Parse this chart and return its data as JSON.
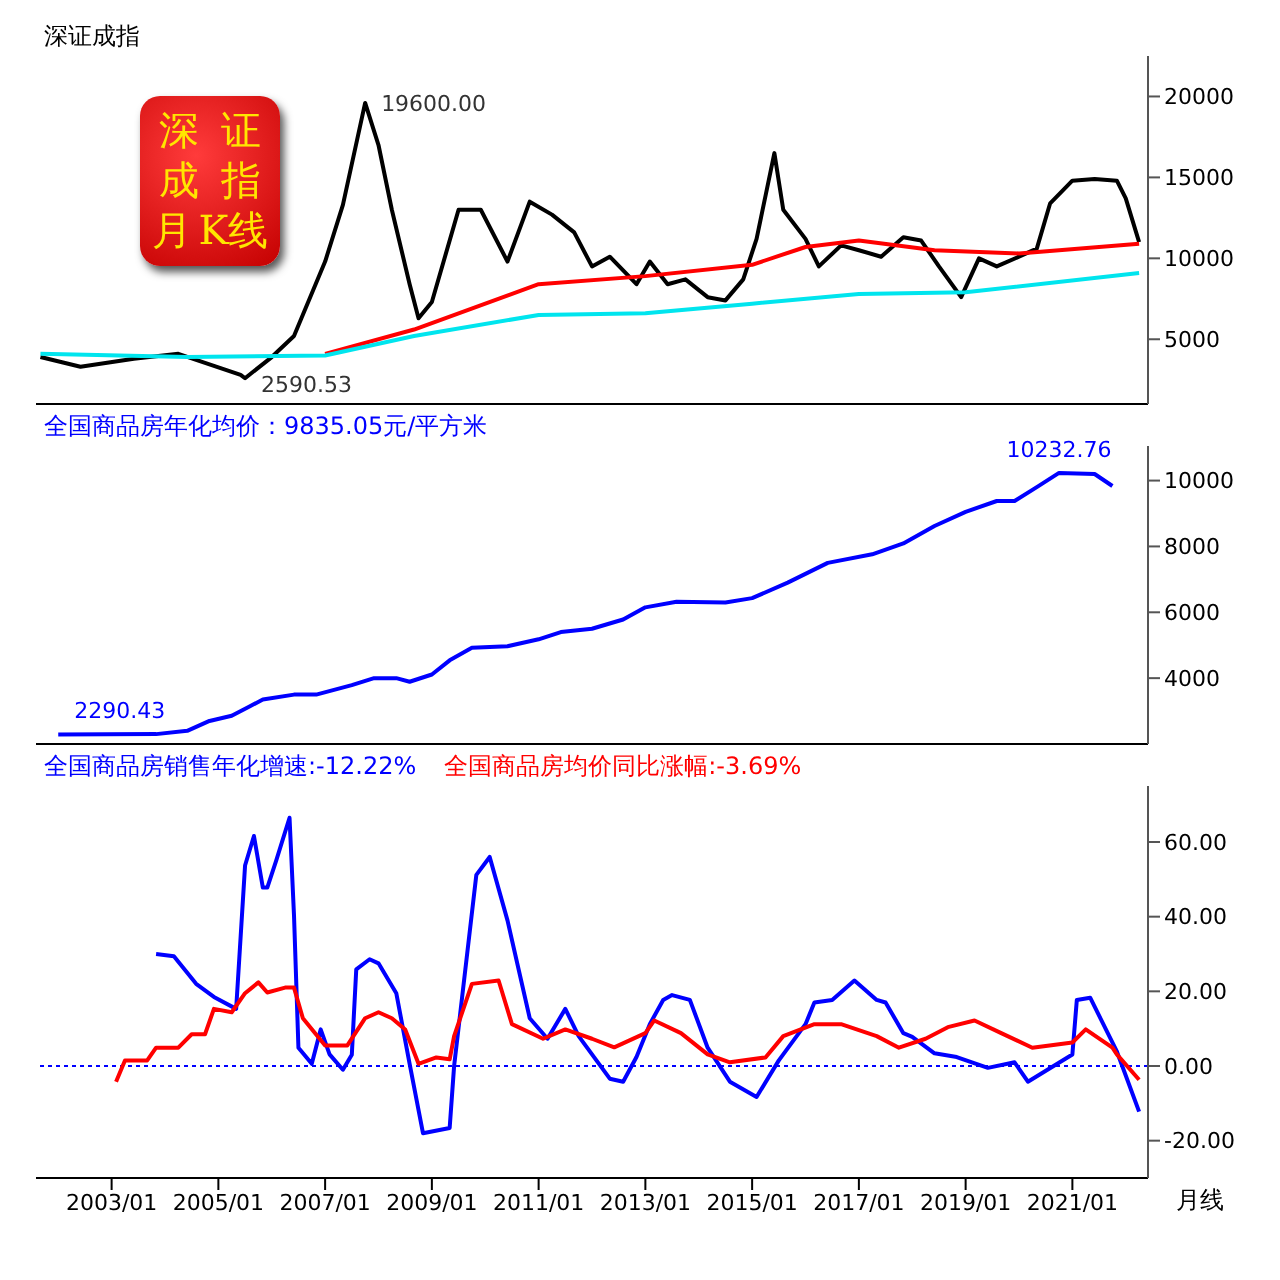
{
  "chart_data": [
    {
      "type": "line",
      "title": "深证成指",
      "xlim": [
        "2001-08",
        "2022-06"
      ],
      "ylim": [
        1000,
        22500
      ],
      "yticks": [
        5000,
        10000,
        15000,
        20000
      ],
      "tick_labels": "y",
      "annotations": [
        "深证成指月K线",
        {
          "text": "19600.00",
          "x": "2007-10",
          "y": 19600
        },
        {
          "text": "2590.53",
          "x": "2005-07",
          "y": 2590.53
        }
      ],
      "series": [
        {
          "color": "#000000",
          "x": [
            "2001-09",
            "2002-06",
            "2003-06",
            "2004-04",
            "2005-06",
            "2005-07",
            "2006-01",
            "2006-06",
            "2007-01",
            "2007-05",
            "2007-10",
            "2008-01",
            "2008-04",
            "2008-08",
            "2008-10",
            "2009-01",
            "2009-07",
            "2009-12",
            "2010-06",
            "2010-11",
            "2011-04",
            "2011-09",
            "2012-01",
            "2012-05",
            "2012-11",
            "2013-02",
            "2013-06",
            "2013-10",
            "2014-03",
            "2014-07",
            "2014-11",
            "2015-02",
            "2015-06",
            "2015-08",
            "2016-01",
            "2016-04",
            "2016-09",
            "2017-01",
            "2017-06",
            "2017-11",
            "2018-03",
            "2018-07",
            "2018-12",
            "2019-04",
            "2019-08",
            "2020-01",
            "2020-05",
            "2020-08",
            "2021-01",
            "2021-06",
            "2021-11",
            "2022-01",
            "2022-04"
          ],
          "values": [
            3900,
            3300,
            3800,
            4100,
            2800,
            2590.53,
            3900,
            5200,
            9800,
            13300,
            19600,
            17000,
            13000,
            8400,
            6300,
            7300,
            13000,
            13000,
            9800,
            13500,
            12700,
            11600,
            9500,
            10100,
            8400,
            9800,
            8400,
            8700,
            7600,
            7400,
            8700,
            11200,
            16500,
            13000,
            11200,
            9500,
            10800,
            10500,
            10100,
            11300,
            11100,
            9500,
            7600,
            10000,
            9500,
            10100,
            10600,
            13400,
            14800,
            14900,
            14800,
            13700,
            11000
          ]
        },
        {
          "color": "#ff0000",
          "x": [
            "2007-01",
            "2008-09",
            "2011-01",
            "2013-01",
            "2015-01",
            "2016-01",
            "2017-01",
            "2018-06",
            "2020-01",
            "2022-04"
          ],
          "values": [
            4100,
            5600,
            8400,
            8900,
            9600,
            10700,
            11100,
            10500,
            10300,
            10900
          ]
        },
        {
          "color": "#00e5ee",
          "x": [
            "2001-09",
            "2004-06",
            "2007-01",
            "2008-09",
            "2011-01",
            "2013-01",
            "2015-01",
            "2017-01",
            "2019-01",
            "2022-04"
          ],
          "values": [
            4100,
            3900,
            4000,
            5200,
            6500,
            6600,
            7200,
            7800,
            7900,
            9100
          ]
        }
      ]
    },
    {
      "type": "line",
      "xlim": [
        "2001-08",
        "2022-06"
      ],
      "ylim": [
        2000,
        11050
      ],
      "yticks": [
        4000,
        6000,
        8000,
        10000
      ],
      "tick_labels": "y",
      "annotations": [
        {
          "text": "2290.43",
          "x": "2002-01",
          "y": 2290.43
        },
        {
          "text": "10232.76",
          "x": "2020-10",
          "y": 10232.76
        }
      ],
      "series": [
        {
          "name": "全国商品房年化均价：9835.05元/平方米",
          "color": "#0000ff",
          "x": [
            "2002-01",
            "2003-11",
            "2004-06",
            "2004-11",
            "2005-04",
            "2005-08",
            "2005-11",
            "2006-06",
            "2006-11",
            "2007-07",
            "2007-12",
            "2008-05",
            "2008-08",
            "2009-01",
            "2009-05",
            "2009-10",
            "2010-06",
            "2011-01",
            "2011-06",
            "2012-01",
            "2012-08",
            "2013-01",
            "2013-08",
            "2014-07",
            "2015-01",
            "2015-09",
            "2016-06",
            "2017-04",
            "2017-11",
            "2018-06",
            "2019-01",
            "2019-08",
            "2019-12",
            "2020-05",
            "2020-10",
            "2021-06",
            "2021-10"
          ],
          "values": [
            2290.43,
            2300,
            2400,
            2700,
            2860,
            3140,
            3350,
            3500,
            3500,
            3790,
            4000,
            4000,
            3890,
            4110,
            4540,
            4920,
            4970,
            5180,
            5400,
            5500,
            5780,
            6150,
            6320,
            6300,
            6430,
            6900,
            7500,
            7760,
            8090,
            8620,
            9050,
            9380,
            9380,
            9800,
            10232.76,
            10200,
            9835.05
          ]
        }
      ]
    },
    {
      "type": "line",
      "xlabel": "月线",
      "xlim": [
        "2001-08",
        "2022-06"
      ],
      "ylim": [
        -30,
        75
      ],
      "yticks": [
        {
          "value": -20,
          "label": "-20.00"
        },
        {
          "value": 0,
          "label": "0.00"
        },
        {
          "value": 20,
          "label": "20.00"
        },
        {
          "value": 40,
          "label": "40.00"
        },
        {
          "value": 60,
          "label": "60.00"
        }
      ],
      "xticks": [
        {
          "value": "2003-01",
          "label": "2003/01"
        },
        {
          "value": "2005-01",
          "label": "2005/01"
        },
        {
          "value": "2007-01",
          "label": "2007/01"
        },
        {
          "value": "2009-01",
          "label": "2009/01"
        },
        {
          "value": "2011-01",
          "label": "2011/01"
        },
        {
          "value": "2013-01",
          "label": "2013/01"
        },
        {
          "value": "2015-01",
          "label": "2015/01"
        },
        {
          "value": "2017-01",
          "label": "2017/01"
        },
        {
          "value": "2019-01",
          "label": "2019/01"
        },
        {
          "value": "2021-01",
          "label": "2021/01"
        }
      ],
      "ref_lines": [
        {
          "axis": "y",
          "value": 0,
          "color": "#0000ff",
          "line_style": "dotted"
        }
      ],
      "series": [
        {
          "name": "全国商品房销售年化增速:-12.22%",
          "color": "#0000ff",
          "x": [
            "2003-11",
            "2004-03",
            "2004-08",
            "2004-12",
            "2005-05",
            "2005-07",
            "2005-09",
            "2005-11",
            "2005-12",
            "2006-02",
            "2006-05",
            "2006-06",
            "2006-07",
            "2006-10",
            "2006-12",
            "2007-02",
            "2007-05",
            "2007-07",
            "2007-08",
            "2007-11",
            "2008-01",
            "2008-05",
            "2008-08",
            "2008-11",
            "2009-05",
            "2009-06",
            "2009-11",
            "2010-02",
            "2010-06",
            "2010-11",
            "2011-03",
            "2011-07",
            "2011-10",
            "2012-05",
            "2012-08",
            "2012-11",
            "2013-02",
            "2013-05",
            "2013-07",
            "2013-11",
            "2014-03",
            "2014-08",
            "2015-02",
            "2015-07",
            "2016-01",
            "2016-03",
            "2016-07",
            "2016-12",
            "2017-05",
            "2017-07",
            "2017-11",
            "2018-01",
            "2018-06",
            "2018-11",
            "2019-06",
            "2019-12",
            "2020-03",
            "2021-01",
            "2021-02",
            "2021-05",
            "2021-11",
            "2022-04"
          ],
          "values": [
            30,
            29.4,
            22,
            18.5,
            15.3,
            53.7,
            61.6,
            47.8,
            47.8,
            55,
            66.5,
            40.5,
            4.9,
            0.6,
            9.8,
            3.1,
            -1,
            3,
            25.9,
            28.6,
            27.5,
            19.5,
            0.6,
            -18,
            -16.6,
            0,
            51.2,
            56,
            39,
            12.8,
            7.3,
            15.3,
            8,
            -3.4,
            -4.2,
            2.4,
            11.2,
            17.7,
            19,
            17.7,
            4.9,
            -4.2,
            -8.3,
            1.5,
            11.2,
            17,
            17.7,
            22.9,
            17.7,
            17,
            8.8,
            7.8,
            3.4,
            2.4,
            -0.5,
            1,
            -4.2,
            3.1,
            17.7,
            18.3,
            3.9,
            -12.22
          ]
        },
        {
          "name": "全国商品房均价同比涨幅:-3.69%",
          "color": "#ff0000",
          "x": [
            "2003-02",
            "2003-04",
            "2003-09",
            "2003-11",
            "2004-04",
            "2004-07",
            "2004-10",
            "2004-12",
            "2005-04",
            "2005-07",
            "2005-10",
            "2005-12",
            "2006-04",
            "2006-06",
            "2006-08",
            "2007-01",
            "2007-06",
            "2007-10",
            "2008-01",
            "2008-04",
            "2008-07",
            "2008-10",
            "2009-02",
            "2009-05",
            "2009-06",
            "2009-10",
            "2010-04",
            "2010-07",
            "2011-02",
            "2011-07",
            "2012-01",
            "2012-06",
            "2013-01",
            "2013-03",
            "2013-09",
            "2014-03",
            "2014-08",
            "2015-04",
            "2015-08",
            "2016-03",
            "2016-09",
            "2017-05",
            "2017-10",
            "2018-04",
            "2018-09",
            "2019-03",
            "2019-09",
            "2020-04",
            "2021-01",
            "2021-04",
            "2021-10",
            "2021-11",
            "2022-04"
          ],
          "values": [
            -4.2,
            1.5,
            1.5,
            4.9,
            4.9,
            8.5,
            8.5,
            15.3,
            14.4,
            19.5,
            22.4,
            19.7,
            21,
            21,
            12.8,
            5.5,
            5.5,
            12.8,
            14.4,
            12.8,
            9.8,
            0.6,
            2.3,
            1.8,
            8,
            22,
            22.9,
            11.2,
            7.3,
            9.8,
            7.3,
            5,
            8.8,
            12.2,
            8.8,
            3.1,
            1,
            2.3,
            8,
            11.2,
            11.2,
            8,
            4.9,
            7.3,
            10.4,
            12.2,
            8.8,
            4.9,
            6.3,
            9.8,
            4.9,
            3.1,
            -3.69
          ]
        }
      ]
    }
  ]
}
